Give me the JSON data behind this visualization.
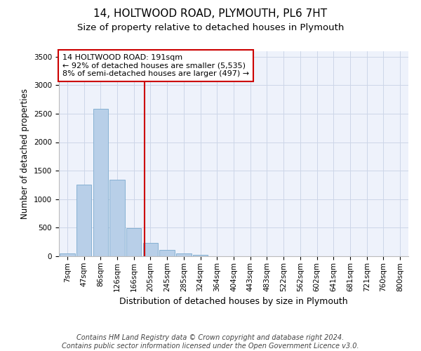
{
  "title": "14, HOLTWOOD ROAD, PLYMOUTH, PL6 7HT",
  "subtitle": "Size of property relative to detached houses in Plymouth",
  "xlabel": "Distribution of detached houses by size in Plymouth",
  "ylabel": "Number of detached properties",
  "background_color": "#eef2fb",
  "bar_color": "#b8cfe8",
  "bar_edge_color": "#7aaace",
  "categories": [
    "7sqm",
    "47sqm",
    "86sqm",
    "126sqm",
    "166sqm",
    "205sqm",
    "245sqm",
    "285sqm",
    "324sqm",
    "364sqm",
    "404sqm",
    "443sqm",
    "483sqm",
    "522sqm",
    "562sqm",
    "602sqm",
    "641sqm",
    "681sqm",
    "721sqm",
    "760sqm",
    "800sqm"
  ],
  "values": [
    50,
    1250,
    2590,
    1340,
    490,
    230,
    115,
    45,
    20,
    5,
    5,
    0,
    0,
    0,
    0,
    0,
    0,
    0,
    0,
    0,
    0
  ],
  "ylim": [
    0,
    3600
  ],
  "yticks": [
    0,
    500,
    1000,
    1500,
    2000,
    2500,
    3000,
    3500
  ],
  "annotation_text": "14 HOLTWOOD ROAD: 191sqm\n← 92% of detached houses are smaller (5,535)\n8% of semi-detached houses are larger (497) →",
  "annotation_box_color": "#ffffff",
  "annotation_box_edge": "#cc0000",
  "red_line_color": "#cc0000",
  "footer_line1": "Contains HM Land Registry data © Crown copyright and database right 2024.",
  "footer_line2": "Contains public sector information licensed under the Open Government Licence v3.0.",
  "grid_color": "#ccd6e8",
  "title_fontsize": 11,
  "subtitle_fontsize": 9.5,
  "ylabel_fontsize": 8.5,
  "xlabel_fontsize": 9,
  "tick_fontsize": 7.5,
  "annotation_fontsize": 8,
  "footer_fontsize": 7
}
